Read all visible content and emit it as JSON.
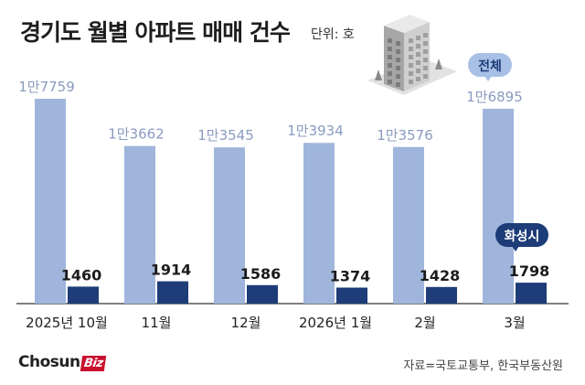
{
  "chart_data": {
    "type": "bar",
    "title": "경기도 월별 아파트 매매 건수",
    "unit_label": "단위: 호",
    "categories": [
      "2025년 10월",
      "11월",
      "12월",
      "2026년 1월",
      "2월",
      "3월"
    ],
    "series": [
      {
        "name": "전체",
        "values": [
          17759,
          13662,
          13545,
          13934,
          13576,
          16895
        ],
        "labels": [
          "1만7759",
          "1만3662",
          "1만3545",
          "1만3934",
          "1만3576",
          "1만6895"
        ],
        "color": "#9fb5dc"
      },
      {
        "name": "화성시",
        "values": [
          1460,
          1914,
          1586,
          1374,
          1428,
          1798
        ],
        "labels": [
          "1460",
          "1914",
          "1586",
          "1374",
          "1428",
          "1798"
        ],
        "color": "#1d3c78"
      }
    ],
    "ylim": [
      0,
      19000
    ],
    "grid": false,
    "legend": "callouts on last category"
  },
  "footer": {
    "logo_main": "Chosun",
    "logo_badge": "Biz",
    "source": "자료=국토교통부, 한국부동산원"
  },
  "colors": {
    "total_bar": "#9fb5dc",
    "hwaseong_bar": "#1d3c78",
    "label_gray": "#8a9bbf",
    "callout_total_bg": "#a9c0e6",
    "callout_hwaseong_bg": "#1d3c78",
    "axis": "#333333"
  },
  "illustration": "apartment-building-icon"
}
